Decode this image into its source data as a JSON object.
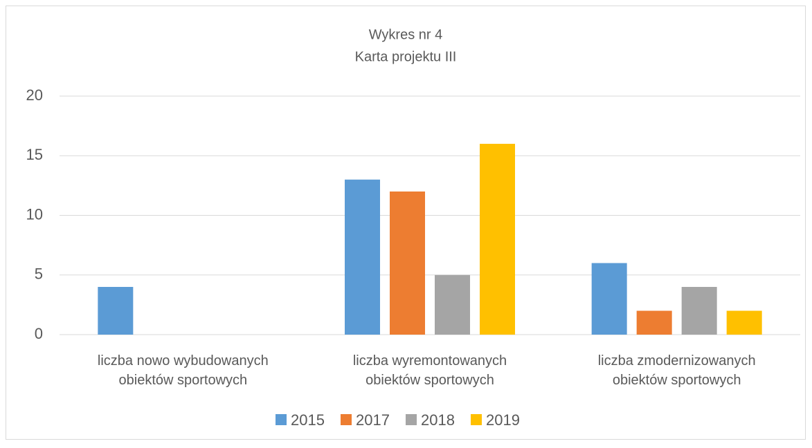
{
  "chart_data": {
    "type": "bar",
    "title": "Wykres nr 4",
    "subtitle": "Karta projektu III",
    "categories": [
      "liczba nowo wybudowanych obiektów sportowych",
      "liczba wyremontowanych obiektów sportowych",
      "liczba zmodernizowanych obiektów sportowych"
    ],
    "series": [
      {
        "name": "2015",
        "color": "#5b9bd5",
        "values": [
          4,
          13,
          6
        ]
      },
      {
        "name": "2017",
        "color": "#ed7d31",
        "values": [
          0,
          12,
          2
        ]
      },
      {
        "name": "2018",
        "color": "#a5a5a5",
        "values": [
          0,
          5,
          4
        ]
      },
      {
        "name": "2019",
        "color": "#ffc000",
        "values": [
          0,
          16,
          2
        ]
      }
    ],
    "ylim": [
      0,
      20
    ],
    "yticks": [
      0,
      5,
      10,
      15,
      20
    ],
    "grid": true,
    "legend": "bottom"
  }
}
